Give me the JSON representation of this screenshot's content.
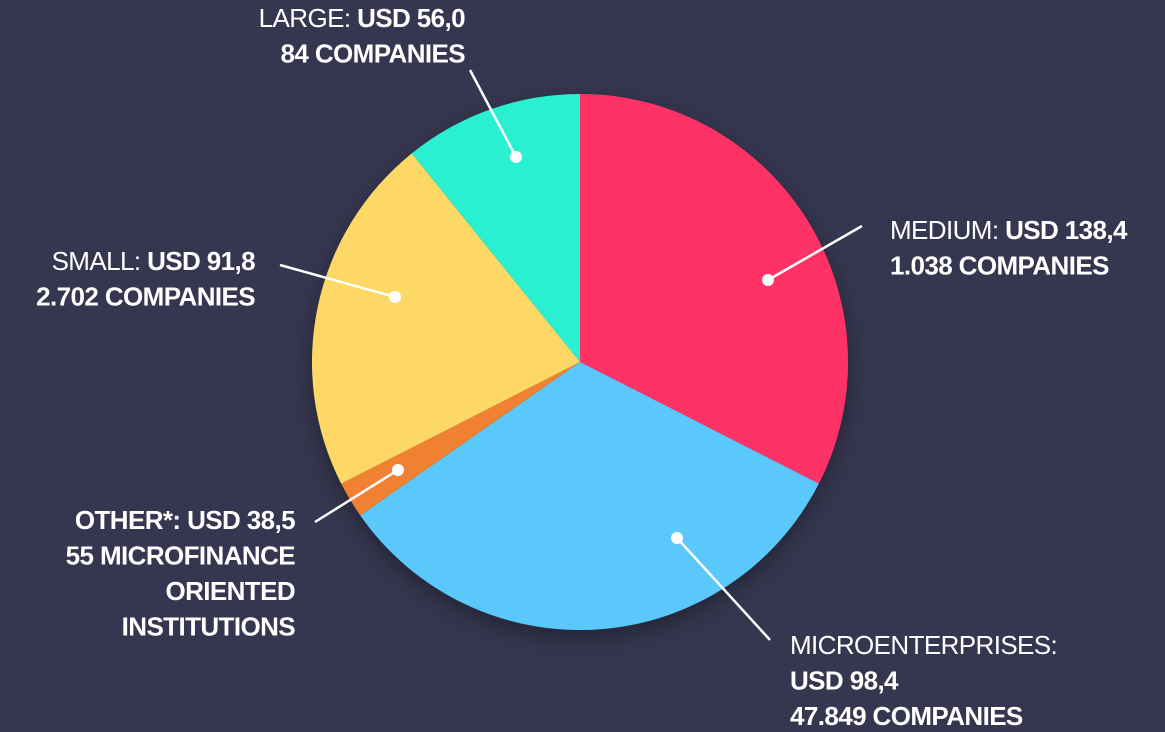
{
  "chart_data": {
    "type": "pie",
    "categories": [
      "MEDIUM",
      "MICROENTERPRISES",
      "OTHER",
      "SMALL",
      "LARGE"
    ],
    "values": [
      32.5,
      32.8,
      2.2,
      21.7,
      10.8
    ],
    "colors": [
      "#ff3366",
      "#5ac8fa",
      "#f08030",
      "#fdd865",
      "#2af0d2"
    ],
    "slice_labels": [
      {
        "lines": [
          [
            {
              "text": "MEDIUM:",
              "bold": false
            },
            {
              "text": "USD 138,4",
              "bold": true
            }
          ],
          [
            {
              "text": "1.038 COMPANIES",
              "bold": true
            }
          ]
        ]
      },
      {
        "lines": [
          [
            {
              "text": "MICROENTERPRISES:",
              "bold": false
            }
          ],
          [
            {
              "text": "USD 98,4",
              "bold": true
            }
          ],
          [
            {
              "text": "47.849 COMPANIES",
              "bold": true
            }
          ]
        ]
      },
      {
        "lines": [
          [
            {
              "text": "OTHER*: USD 38,5",
              "bold": true
            }
          ],
          [
            {
              "text": "55 MICROFINANCE",
              "bold": true
            }
          ],
          [
            {
              "text": "ORIENTED",
              "bold": true
            }
          ],
          [
            {
              "text": "INSTITUTIONS",
              "bold": true
            }
          ]
        ]
      },
      {
        "lines": [
          [
            {
              "text": "SMALL:",
              "bold": false
            },
            {
              "text": "USD  91,8",
              "bold": true
            }
          ],
          [
            {
              "text": "2.702 COMPANIES",
              "bold": true
            }
          ]
        ]
      },
      {
        "lines": [
          [
            {
              "text": "LARGE:",
              "bold": false
            },
            {
              "text": "USD 56,0",
              "bold": true
            }
          ],
          [
            {
              "text": "84 COMPANIES",
              "bold": true
            }
          ]
        ]
      }
    ]
  }
}
